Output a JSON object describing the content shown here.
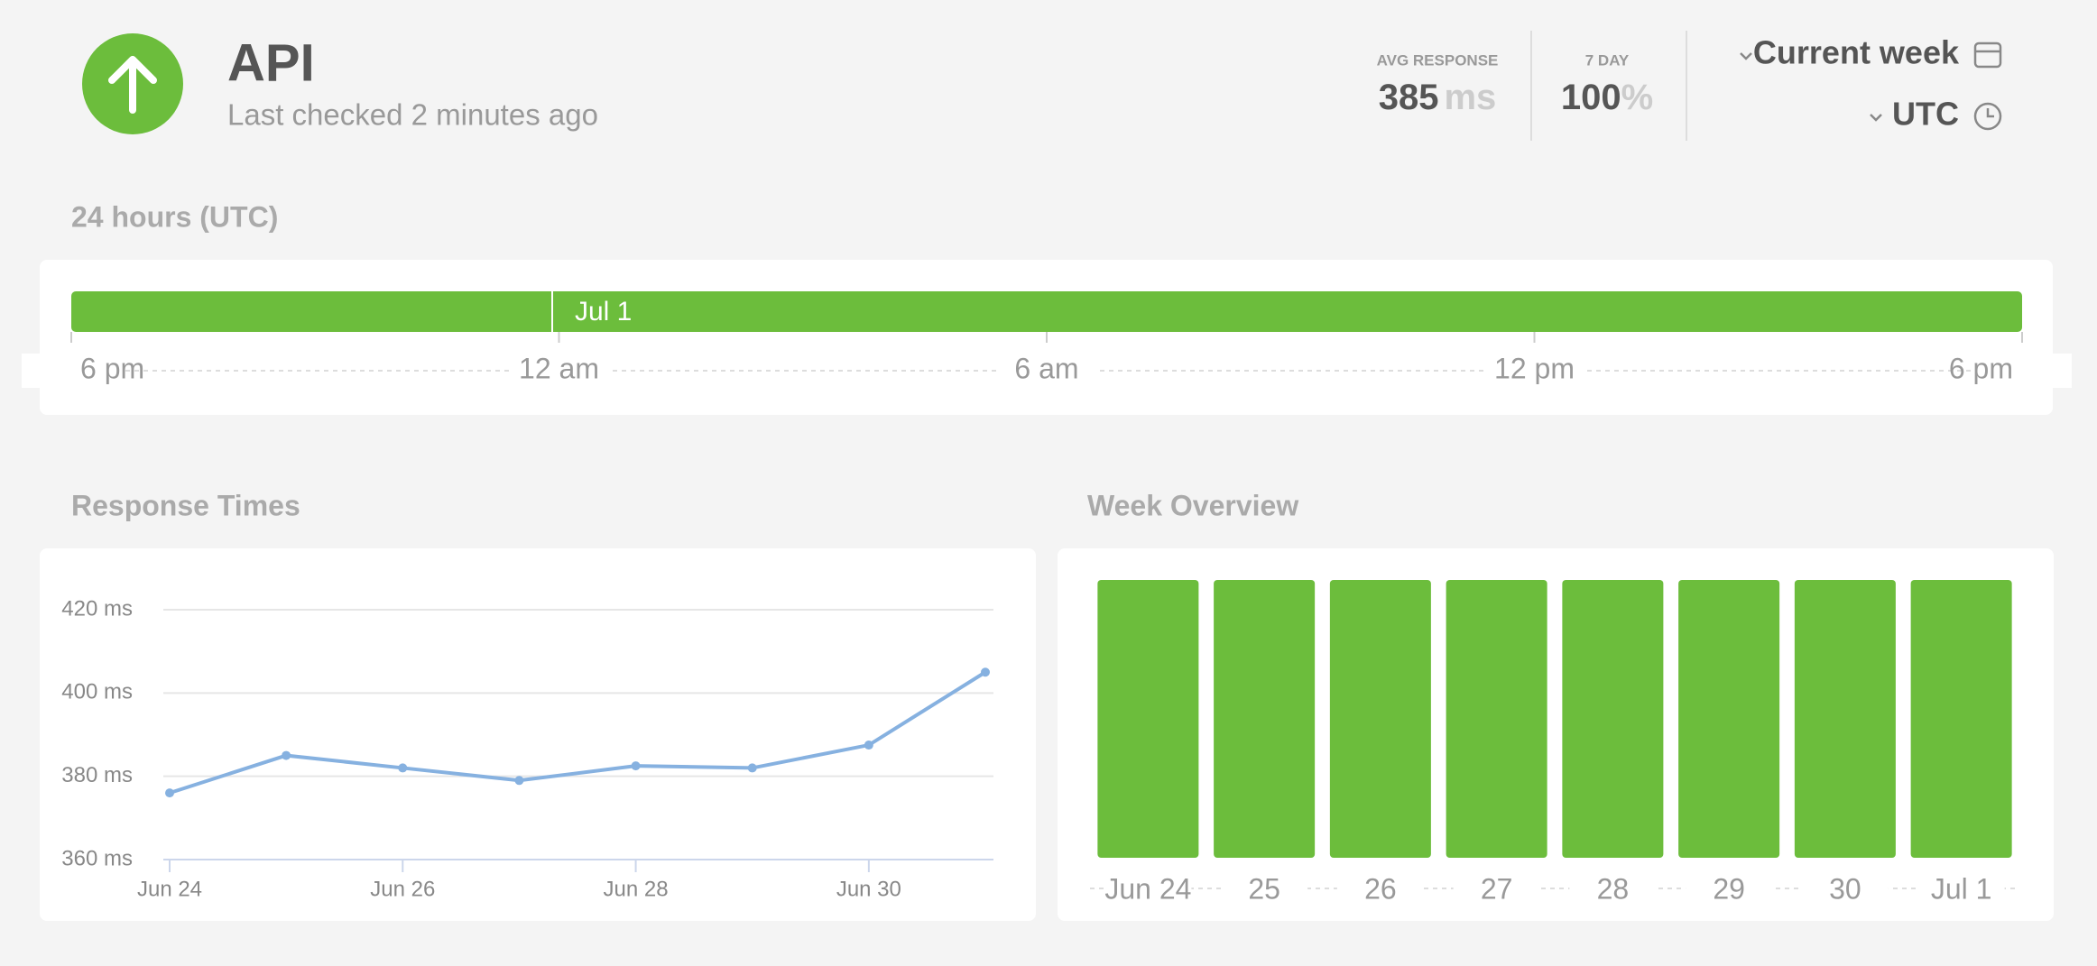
{
  "header": {
    "title": "API",
    "subtitle": "Last checked 2 minutes ago"
  },
  "stats": [
    {
      "label": "AVG RESPONSE",
      "value": "385",
      "unit": "ms"
    },
    {
      "label": "7 DAY",
      "value": "100",
      "unit": "%"
    }
  ],
  "controls": {
    "period": "Current week",
    "timezone": "UTC"
  },
  "uptime_24h": {
    "title": "24 hours (UTC)",
    "date_label": "Jul 1",
    "ticks": [
      "6 pm",
      "12 am",
      "6 am",
      "12 pm",
      "6 pm"
    ]
  },
  "chart_data": [
    {
      "type": "line",
      "title": "Response Times",
      "categories": [
        "Jun 24",
        null,
        "Jun 26",
        null,
        "Jun 28",
        null,
        "Jun 30",
        null
      ],
      "values": [
        376,
        385,
        382,
        379,
        382.5,
        382,
        387.5,
        405
      ],
      "color": "#86b1e0",
      "ylim": [
        360,
        420
      ],
      "yticks": [
        {
          "value": 360,
          "label": "360 ms"
        },
        {
          "value": 380,
          "label": "380 ms"
        },
        {
          "value": 400,
          "label": "400 ms"
        },
        {
          "value": 420,
          "label": "420 ms"
        }
      ],
      "grid": true
    },
    {
      "type": "bar",
      "title": "Week Overview",
      "categories": [
        "Jun 24",
        "25",
        "26",
        "27",
        "28",
        "29",
        "30",
        "Jul 1"
      ],
      "values": [
        100,
        100,
        100,
        100,
        100,
        100,
        100,
        100
      ],
      "color": "#6cbd3c",
      "ylim": [
        0,
        100
      ]
    }
  ]
}
